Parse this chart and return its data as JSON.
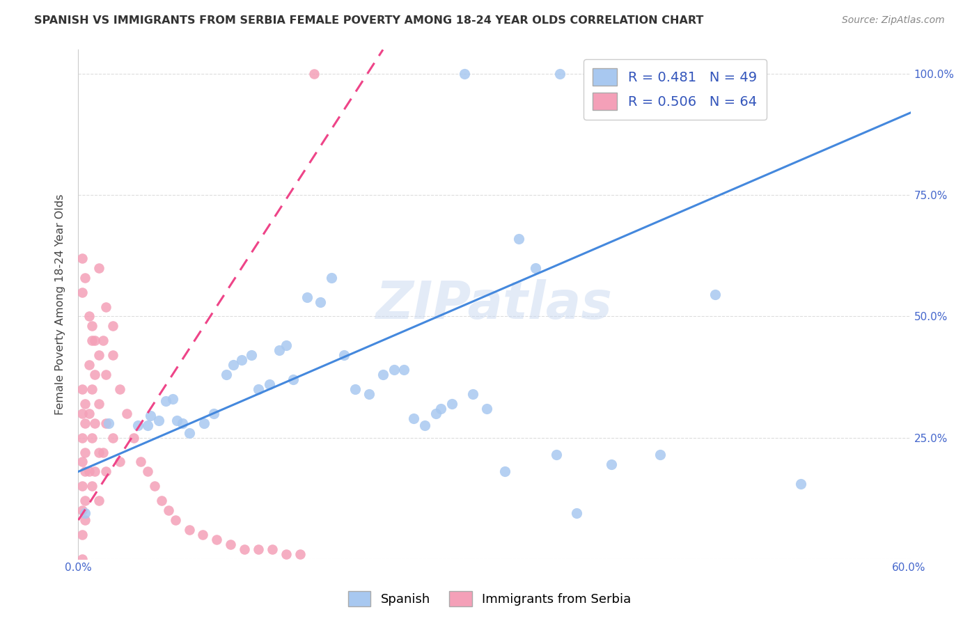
{
  "title": "SPANISH VS IMMIGRANTS FROM SERBIA FEMALE POVERTY AMONG 18-24 YEAR OLDS CORRELATION CHART",
  "source": "Source: ZipAtlas.com",
  "ylabel": "Female Poverty Among 18-24 Year Olds",
  "xlim": [
    0.0,
    0.601
  ],
  "ylim": [
    0.0,
    1.05
  ],
  "xtick_vals": [
    0.0,
    0.1,
    0.2,
    0.3,
    0.4,
    0.5,
    0.6
  ],
  "xtick_labels": [
    "0.0%",
    "",
    "",
    "",
    "",
    "",
    "60.0%"
  ],
  "ytick_vals": [
    0.0,
    0.25,
    0.5,
    0.75,
    1.0
  ],
  "ytick_labels_right": [
    "",
    "25.0%",
    "50.0%",
    "75.0%",
    "100.0%"
  ],
  "blue_R": 0.481,
  "blue_N": 49,
  "pink_R": 0.506,
  "pink_N": 64,
  "blue_color": "#a8c8f0",
  "pink_color": "#f4a0b8",
  "line_blue": "#4488dd",
  "line_pink": "#ee4488",
  "background_color": "#ffffff",
  "grid_color": "#dddddd",
  "title_color": "#333333",
  "axis_color": "#4466cc",
  "legend_text_color": "#3355bb",
  "spanish_x": [
    0.279,
    0.348,
    0.522,
    0.005,
    0.052,
    0.068,
    0.075,
    0.08,
    0.091,
    0.098,
    0.107,
    0.112,
    0.118,
    0.125,
    0.13,
    0.138,
    0.145,
    0.15,
    0.155,
    0.165,
    0.175,
    0.183,
    0.192,
    0.2,
    0.21,
    0.22,
    0.228,
    0.235,
    0.05,
    0.063,
    0.242,
    0.25,
    0.258,
    0.262,
    0.27,
    0.285,
    0.295,
    0.308,
    0.318,
    0.33,
    0.345,
    0.36,
    0.385,
    0.42,
    0.46,
    0.022,
    0.043,
    0.058,
    0.071
  ],
  "spanish_y": [
    1.0,
    1.0,
    0.155,
    0.095,
    0.295,
    0.33,
    0.28,
    0.26,
    0.28,
    0.3,
    0.38,
    0.4,
    0.41,
    0.42,
    0.35,
    0.36,
    0.43,
    0.44,
    0.37,
    0.54,
    0.53,
    0.58,
    0.42,
    0.35,
    0.34,
    0.38,
    0.39,
    0.39,
    0.275,
    0.325,
    0.29,
    0.275,
    0.3,
    0.31,
    0.32,
    0.34,
    0.31,
    0.18,
    0.66,
    0.6,
    0.215,
    0.095,
    0.195,
    0.215,
    0.545,
    0.28,
    0.275,
    0.285,
    0.285
  ],
  "serbia_x": [
    0.003,
    0.003,
    0.003,
    0.003,
    0.003,
    0.003,
    0.003,
    0.003,
    0.005,
    0.005,
    0.005,
    0.005,
    0.005,
    0.005,
    0.008,
    0.008,
    0.008,
    0.01,
    0.01,
    0.01,
    0.01,
    0.012,
    0.012,
    0.012,
    0.015,
    0.015,
    0.015,
    0.015,
    0.018,
    0.018,
    0.02,
    0.02,
    0.02,
    0.025,
    0.025,
    0.03,
    0.03,
    0.035,
    0.04,
    0.045,
    0.05,
    0.055,
    0.06,
    0.065,
    0.07,
    0.08,
    0.09,
    0.1,
    0.11,
    0.12,
    0.13,
    0.14,
    0.15,
    0.16,
    0.17,
    0.003,
    0.003,
    0.005,
    0.008,
    0.01,
    0.012,
    0.015,
    0.02,
    0.025
  ],
  "serbia_y": [
    0.3,
    0.25,
    0.2,
    0.15,
    0.1,
    0.05,
    0.0,
    0.35,
    0.32,
    0.28,
    0.22,
    0.18,
    0.12,
    0.08,
    0.4,
    0.3,
    0.18,
    0.35,
    0.25,
    0.15,
    0.45,
    0.38,
    0.28,
    0.18,
    0.42,
    0.32,
    0.22,
    0.12,
    0.45,
    0.22,
    0.38,
    0.28,
    0.18,
    0.42,
    0.25,
    0.35,
    0.2,
    0.3,
    0.25,
    0.2,
    0.18,
    0.15,
    0.12,
    0.1,
    0.08,
    0.06,
    0.05,
    0.04,
    0.03,
    0.02,
    0.02,
    0.02,
    0.01,
    0.01,
    1.0,
    0.55,
    0.62,
    0.58,
    0.5,
    0.48,
    0.45,
    0.6,
    0.52,
    0.48
  ],
  "blue_line_x0": 0.0,
  "blue_line_y0": 0.18,
  "blue_line_x1": 0.601,
  "blue_line_y1": 0.92,
  "pink_line_x0": 0.0,
  "pink_line_y0": 0.08,
  "pink_line_x1": 0.22,
  "pink_line_y1": 1.05
}
